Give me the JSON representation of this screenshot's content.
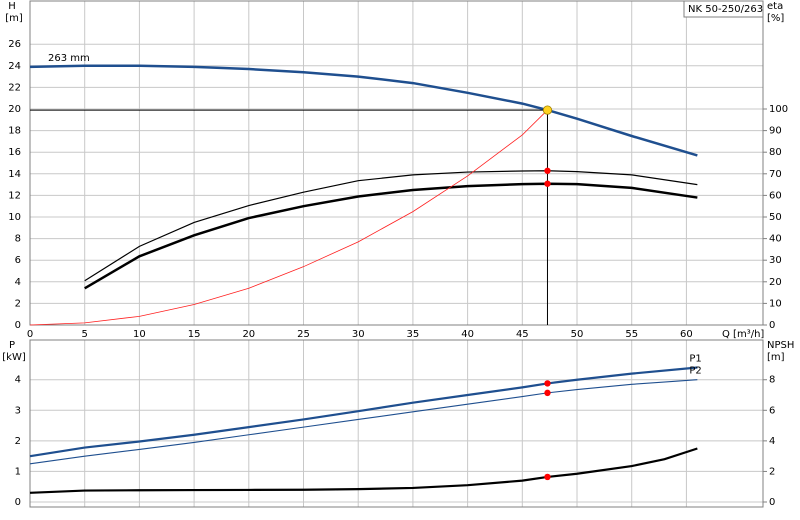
{
  "chart_data": [
    {
      "type": "line",
      "title": "NK 50-250/263",
      "y_label": "H",
      "y_unit": "[m]",
      "y2_label": "eta",
      "y2_unit": "[%]",
      "x_label": "Q [m³/h]",
      "xlim": [
        0,
        67
      ],
      "xticks": [
        0,
        5,
        10,
        15,
        20,
        25,
        30,
        35,
        40,
        45,
        50,
        55,
        60
      ],
      "ylim": [
        0,
        30
      ],
      "yticks": [
        0,
        2,
        4,
        6,
        8,
        10,
        12,
        14,
        16,
        18,
        20,
        22,
        24,
        26
      ],
      "y2lim": [
        0,
        150
      ],
      "y2ticks": [
        0,
        10,
        20,
        30,
        40,
        50,
        60,
        70,
        80,
        90,
        100
      ],
      "grid": true,
      "marker_x": 47.3,
      "series": [
        {
          "name": "263 mm",
          "label_position": "start",
          "color": "#1f4f8f",
          "width": 2.5,
          "marker_color": "#ffd21f",
          "duty_lines": true,
          "x": [
            0,
            5,
            10,
            15,
            20,
            25,
            30,
            35,
            40,
            45,
            47.3,
            50,
            55,
            61
          ],
          "values": [
            23.9,
            24.0,
            24.0,
            23.9,
            23.7,
            23.4,
            23.0,
            22.4,
            21.5,
            20.5,
            19.9,
            19.1,
            17.5,
            15.7
          ]
        },
        {
          "axis": "y2",
          "color": "#000000",
          "width": 1.2,
          "marker_color": "#ff0000",
          "x": [
            5,
            10,
            15,
            20,
            25,
            30,
            35,
            40,
            45,
            47.3,
            50,
            55,
            61
          ],
          "values": [
            20.5,
            36.4,
            47.5,
            55.3,
            61.5,
            66.8,
            69.5,
            70.8,
            71.3,
            71.4,
            71.0,
            69.5,
            65.0
          ]
        },
        {
          "axis": "y2",
          "color": "#000000",
          "width": 2.5,
          "marker_color": "#ff0000",
          "x": [
            5,
            10,
            15,
            20,
            25,
            30,
            35,
            40,
            45,
            47.3,
            50,
            55,
            61
          ],
          "values": [
            17,
            31.8,
            41.5,
            49.5,
            55,
            59.5,
            62.5,
            64.3,
            65.2,
            65.4,
            65.2,
            63.5,
            59.0
          ]
        },
        {
          "color": "#ff2020",
          "width": 0.8,
          "x": [
            0,
            5,
            10,
            15,
            20,
            25,
            30,
            35,
            40,
            45,
            47.3
          ],
          "values": [
            0,
            0.2,
            0.8,
            1.9,
            3.4,
            5.4,
            7.7,
            10.5,
            13.8,
            17.6,
            19.9
          ]
        }
      ]
    },
    {
      "type": "line",
      "y_label": "P",
      "y_unit": "[kW]",
      "y2_label": "NPSH",
      "y2_unit": "[m]",
      "xlim": [
        0,
        67
      ],
      "ylim": [
        0,
        5.3
      ],
      "yticks": [
        0,
        1,
        2,
        3,
        4
      ],
      "y2lim": [
        0,
        10.6
      ],
      "y2ticks": [
        0,
        2,
        4,
        6,
        8
      ],
      "grid": true,
      "marker_x": 47.3,
      "series": [
        {
          "name": "P1",
          "label_position": "end",
          "color": "#1f4f8f",
          "width": 2.2,
          "marker_color": "#ff0000",
          "x": [
            0,
            5,
            10,
            15,
            20,
            25,
            30,
            35,
            40,
            45,
            47.3,
            50,
            55,
            61
          ],
          "values": [
            1.5,
            1.78,
            1.98,
            2.2,
            2.45,
            2.7,
            2.97,
            3.25,
            3.5,
            3.75,
            3.88,
            4.0,
            4.2,
            4.4
          ]
        },
        {
          "name": "P2",
          "label_position": "end",
          "color": "#1f4f8f",
          "width": 1.1,
          "marker_color": "#ff0000",
          "x": [
            0,
            5,
            10,
            15,
            20,
            25,
            30,
            35,
            40,
            45,
            47.3,
            50,
            55,
            61
          ],
          "values": [
            1.25,
            1.5,
            1.72,
            1.95,
            2.2,
            2.45,
            2.7,
            2.95,
            3.2,
            3.45,
            3.57,
            3.68,
            3.85,
            4.0
          ]
        },
        {
          "axis": "y2",
          "color": "#000000",
          "width": 2.2,
          "marker_color": "#ff0000",
          "x": [
            0,
            5,
            10,
            15,
            20,
            25,
            30,
            35,
            40,
            45,
            47.3,
            50,
            55,
            58,
            61
          ],
          "values": [
            0.6,
            0.75,
            0.77,
            0.78,
            0.79,
            0.8,
            0.84,
            0.92,
            1.1,
            1.4,
            1.64,
            1.85,
            2.35,
            2.8,
            3.5
          ]
        }
      ]
    }
  ]
}
